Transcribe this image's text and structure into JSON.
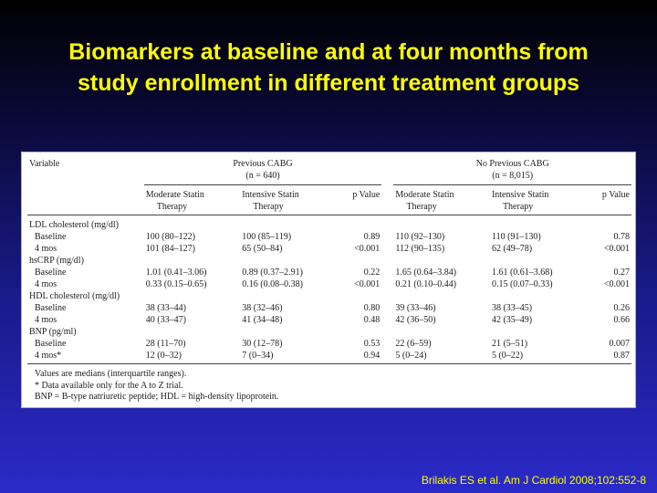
{
  "slide": {
    "title_line1": "Biomarkers at baseline and at four months from",
    "title_line2": "study enrollment in different treatment groups",
    "citation": "Brilakis ES et al. Am J Cardiol 2008;102:552-8"
  },
  "table": {
    "variable_header": "Variable",
    "group1": {
      "name": "Previous CABG",
      "n": "(n = 640)"
    },
    "group2": {
      "name": "No Previous CABG",
      "n": "(n = 8,015)"
    },
    "col_moderate_1": "Moderate Statin",
    "col_moderate_2": "Therapy",
    "col_intensive_1": "Intensive Statin",
    "col_intensive_2": "Therapy",
    "col_p": "p Value",
    "sections": [
      {
        "name": "LDL cholesterol (mg/dl)",
        "rows": [
          {
            "label": "Baseline",
            "g1_mod": "100 (80–122)",
            "g1_int": "100 (85–119)",
            "g1_p": "0.89",
            "g2_mod": "110 (92–130)",
            "g2_int": "110 (91–130)",
            "g2_p": "0.78"
          },
          {
            "label": "4 mos",
            "g1_mod": "101 (84–127)",
            "g1_int": "65 (50–84)",
            "g1_p": "<0.001",
            "g2_mod": "112 (90–135)",
            "g2_int": "62 (49–78)",
            "g2_p": "<0.001"
          }
        ]
      },
      {
        "name": "hsCRP (mg/dl)",
        "rows": [
          {
            "label": "Baseline",
            "g1_mod": "1.01 (0.41–3.06)",
            "g1_int": "0.89 (0.37–2.91)",
            "g1_p": "0.22",
            "g2_mod": "1.65 (0.64–3.84)",
            "g2_int": "1.61 (0.61–3.68)",
            "g2_p": "0.27"
          },
          {
            "label": "4 mos",
            "g1_mod": "0.33 (0.15–0.65)",
            "g1_int": "0.16 (0.08–0.38)",
            "g1_p": "<0.001",
            "g2_mod": "0.21 (0.10–0.44)",
            "g2_int": "0.15 (0.07–0.33)",
            "g2_p": "<0.001"
          }
        ]
      },
      {
        "name": "HDL cholesterol (mg/dl)",
        "rows": [
          {
            "label": "Baseline",
            "g1_mod": "38 (33–44)",
            "g1_int": "38 (32–46)",
            "g1_p": "0.80",
            "g2_mod": "39 (33–46)",
            "g2_int": "38 (33–45)",
            "g2_p": "0.26"
          },
          {
            "label": "4 mos",
            "g1_mod": "40 (33–47)",
            "g1_int": "41 (34–48)",
            "g1_p": "0.48",
            "g2_mod": "42 (36–50)",
            "g2_int": "42 (35–49)",
            "g2_p": "0.66"
          }
        ]
      },
      {
        "name": "BNP (pg/ml)",
        "rows": [
          {
            "label": "Baseline",
            "g1_mod": "28 (11–70)",
            "g1_int": "30 (12–78)",
            "g1_p": "0.53",
            "g2_mod": "22 (6–59)",
            "g2_int": "21 (5–51)",
            "g2_p": "0.007"
          },
          {
            "label": "4 mos*",
            "g1_mod": "12 (0–32)",
            "g1_int": "7 (0–34)",
            "g1_p": "0.94",
            "g2_mod": "5 (0–24)",
            "g2_int": "5 (0–22)",
            "g2_p": "0.87"
          }
        ]
      }
    ],
    "notes": [
      "Values are medians (interquartile ranges).",
      "* Data available only for the A to Z trial.",
      "BNP = B-type natriuretic peptide; HDL = high-density lipoprotein."
    ]
  }
}
